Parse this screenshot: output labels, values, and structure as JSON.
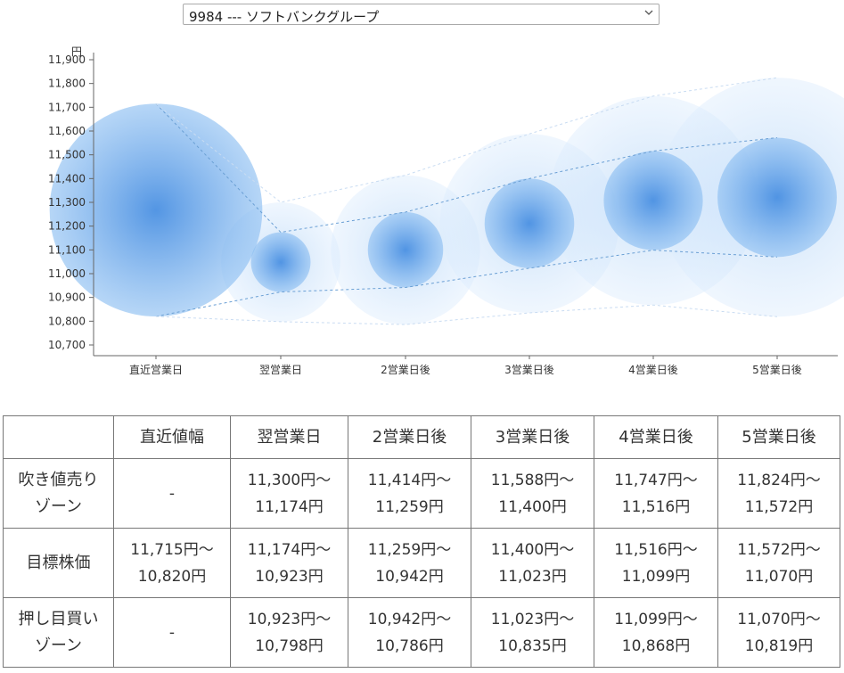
{
  "selector": {
    "value": "9984 --- ソフトバンクグループ"
  },
  "chart_data": {
    "type": "bubble",
    "y_unit_label": "円",
    "ylim": [
      10700,
      11900
    ],
    "y_ticks": [
      "10,700",
      "10,800",
      "10,900",
      "11,000",
      "11,100",
      "11,200",
      "11,300",
      "11,400",
      "11,500",
      "11,600",
      "11,700",
      "11,800",
      "11,900"
    ],
    "categories": [
      "直近営業日",
      "翌営業日",
      "2営業日後",
      "3営業日後",
      "4営業日後",
      "5営業日後"
    ],
    "target_upper": [
      11715,
      11174,
      11259,
      11400,
      11516,
      11572
    ],
    "target_lower": [
      10820,
      10923,
      10942,
      11023,
      11099,
      11070
    ],
    "sell_upper": [
      null,
      11300,
      11414,
      11588,
      11747,
      11824
    ],
    "buy_lower": [
      null,
      10798,
      10786,
      10835,
      10868,
      10819
    ],
    "colors": {
      "bubble": "#4a90e2",
      "line": "#6a9fd4",
      "outer_line": "#9fbfe3"
    }
  },
  "table": {
    "headers": [
      "",
      "直近値幅",
      "翌営業日",
      "2営業日後",
      "3営業日後",
      "4営業日後",
      "5営業日後"
    ],
    "rows": [
      {
        "label": [
          "吹き値売り",
          "ゾーン"
        ],
        "cells": [
          [
            "-"
          ],
          [
            "11,300円～",
            "11,174円"
          ],
          [
            "11,414円～",
            "11,259円"
          ],
          [
            "11,588円～",
            "11,400円"
          ],
          [
            "11,747円～",
            "11,516円"
          ],
          [
            "11,824円～",
            "11,572円"
          ]
        ]
      },
      {
        "label": [
          "目標株価"
        ],
        "cells": [
          [
            "11,715円～",
            "10,820円"
          ],
          [
            "11,174円～",
            "10,923円"
          ],
          [
            "11,259円～",
            "10,942円"
          ],
          [
            "11,400円～",
            "11,023円"
          ],
          [
            "11,516円～",
            "11,099円"
          ],
          [
            "11,572円～",
            "11,070円"
          ]
        ]
      },
      {
        "label": [
          "押し目買い",
          "ゾーン"
        ],
        "cells": [
          [
            "-"
          ],
          [
            "10,923円～",
            "10,798円"
          ],
          [
            "10,942円～",
            "10,786円"
          ],
          [
            "11,023円～",
            "10,835円"
          ],
          [
            "11,099円～",
            "10,868円"
          ],
          [
            "11,070円～",
            "10,819円"
          ]
        ]
      }
    ]
  }
}
